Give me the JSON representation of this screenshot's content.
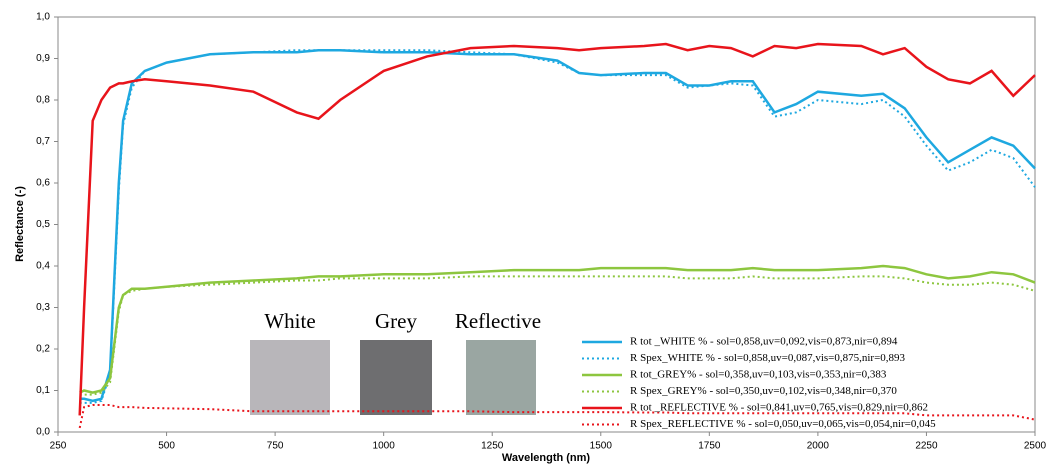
{
  "chart_data": {
    "type": "line",
    "xlabel": "Wavelength (nm)",
    "ylabel": "Reflectance (-)",
    "xlim": [
      250,
      2500
    ],
    "ylim": [
      0,
      1
    ],
    "xticks": [
      250,
      500,
      750,
      1000,
      1250,
      1500,
      1750,
      2000,
      2250,
      2500
    ],
    "yticks": [
      {
        "value": 0,
        "label": "0,0"
      },
      {
        "value": 0.1,
        "label": "0,1"
      },
      {
        "value": 0.2,
        "label": "0,2"
      },
      {
        "value": 0.3,
        "label": "0,3"
      },
      {
        "value": 0.4,
        "label": "0,4"
      },
      {
        "value": 0.5,
        "label": "0,5"
      },
      {
        "value": 0.6,
        "label": "0,6"
      },
      {
        "value": 0.7,
        "label": "0,7"
      },
      {
        "value": 0.8,
        "label": "0,8"
      },
      {
        "value": 0.9,
        "label": "0,9"
      },
      {
        "value": 1,
        "label": "1,0"
      }
    ],
    "grid": false,
    "legend": "lower right",
    "annotations": [
      "White",
      "Grey",
      "Reflective"
    ],
    "x": [
      300,
      310,
      330,
      350,
      370,
      390,
      400,
      420,
      450,
      500,
      600,
      700,
      800,
      850,
      900,
      1000,
      1100,
      1200,
      1300,
      1400,
      1450,
      1500,
      1600,
      1650,
      1700,
      1750,
      1800,
      1850,
      1900,
      1950,
      2000,
      2100,
      2150,
      2200,
      2250,
      2300,
      2350,
      2400,
      2450,
      2500
    ],
    "series": [
      {
        "name": "R tot _WHITE % - sol=0,858,uv=0,092,vis=0,873,nir=0,894",
        "color": "#1ea8e0",
        "style": "solid",
        "values": [
          0.08,
          0.08,
          0.075,
          0.08,
          0.15,
          0.6,
          0.75,
          0.84,
          0.87,
          0.89,
          0.91,
          0.915,
          0.915,
          0.92,
          0.92,
          0.915,
          0.915,
          0.91,
          0.91,
          0.895,
          0.865,
          0.86,
          0.865,
          0.865,
          0.835,
          0.835,
          0.845,
          0.845,
          0.77,
          0.79,
          0.82,
          0.81,
          0.815,
          0.78,
          0.71,
          0.65,
          0.68,
          0.71,
          0.69,
          0.635
        ]
      },
      {
        "name": "R Spex_WHITE % - sol=0,858,uv=0,087,vis=0,875,nir=0,893",
        "color": "#1ea8e0",
        "style": "dotted",
        "values": [
          0.07,
          0.07,
          0.07,
          0.075,
          0.14,
          0.58,
          0.74,
          0.83,
          0.87,
          0.89,
          0.91,
          0.915,
          0.92,
          0.92,
          0.92,
          0.92,
          0.92,
          0.915,
          0.91,
          0.89,
          0.865,
          0.86,
          0.86,
          0.86,
          0.83,
          0.835,
          0.84,
          0.835,
          0.76,
          0.77,
          0.8,
          0.79,
          0.8,
          0.76,
          0.69,
          0.63,
          0.65,
          0.68,
          0.66,
          0.59
        ]
      },
      {
        "name": "R tot_GREY% - sol=0,358,uv=0,103,vis=0,353,nir=0,383",
        "color": "#8dc63f",
        "style": "solid",
        "values": [
          0.095,
          0.1,
          0.095,
          0.1,
          0.13,
          0.3,
          0.33,
          0.345,
          0.345,
          0.35,
          0.36,
          0.365,
          0.37,
          0.375,
          0.375,
          0.38,
          0.38,
          0.385,
          0.39,
          0.39,
          0.39,
          0.395,
          0.395,
          0.395,
          0.39,
          0.39,
          0.39,
          0.395,
          0.39,
          0.39,
          0.39,
          0.395,
          0.4,
          0.395,
          0.38,
          0.37,
          0.375,
          0.385,
          0.38,
          0.36
        ]
      },
      {
        "name": "R Spex_GREY% - sol=0,350,uv=0,102,vis=0,348,nir=0,370",
        "color": "#8dc63f",
        "style": "dotted",
        "values": [
          0.09,
          0.09,
          0.09,
          0.095,
          0.12,
          0.29,
          0.33,
          0.34,
          0.345,
          0.35,
          0.355,
          0.36,
          0.365,
          0.365,
          0.37,
          0.37,
          0.37,
          0.375,
          0.375,
          0.375,
          0.375,
          0.375,
          0.375,
          0.375,
          0.37,
          0.37,
          0.37,
          0.375,
          0.37,
          0.37,
          0.37,
          0.375,
          0.375,
          0.37,
          0.36,
          0.355,
          0.355,
          0.36,
          0.355,
          0.34
        ]
      },
      {
        "name": "R tot _REFLECTIVE % - sol=0,841,uv=0,765,vis=0,829,nir=0,862",
        "color": "#e8141b",
        "style": "solid",
        "values": [
          0.04,
          0.3,
          0.75,
          0.8,
          0.83,
          0.84,
          0.84,
          0.845,
          0.85,
          0.845,
          0.835,
          0.82,
          0.77,
          0.755,
          0.8,
          0.87,
          0.905,
          0.925,
          0.93,
          0.925,
          0.92,
          0.925,
          0.93,
          0.935,
          0.92,
          0.93,
          0.925,
          0.905,
          0.93,
          0.925,
          0.935,
          0.93,
          0.91,
          0.925,
          0.88,
          0.85,
          0.84,
          0.87,
          0.81,
          0.86
        ]
      },
      {
        "name": "R Spex_REFLECTIVE % - sol=0,050,uv=0,065,vis=0,054,nir=0,045",
        "color": "#e8141b",
        "style": "dotted",
        "values": [
          0.01,
          0.06,
          0.065,
          0.065,
          0.065,
          0.06,
          0.06,
          0.06,
          0.058,
          0.057,
          0.055,
          0.05,
          0.05,
          0.05,
          0.05,
          0.05,
          0.05,
          0.05,
          0.048,
          0.048,
          0.048,
          0.048,
          0.047,
          0.047,
          0.045,
          0.045,
          0.045,
          0.045,
          0.045,
          0.045,
          0.045,
          0.045,
          0.045,
          0.045,
          0.04,
          0.04,
          0.04,
          0.04,
          0.04,
          0.03
        ]
      }
    ]
  }
}
